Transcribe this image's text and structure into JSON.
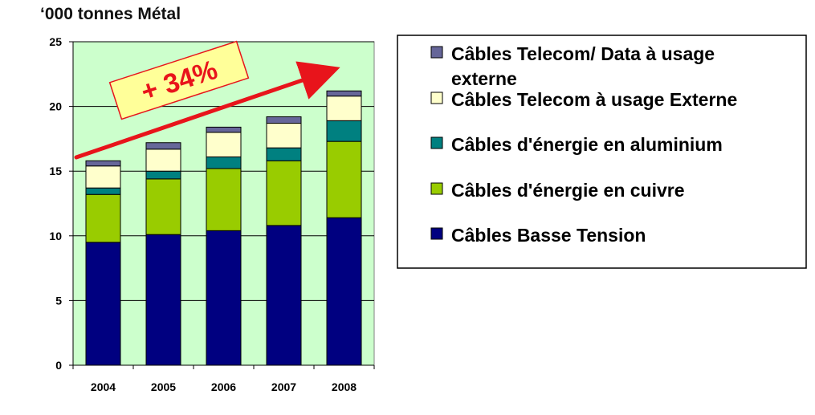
{
  "chart_data": {
    "type": "bar",
    "stacked": true,
    "title": "‘000 tonnes Métal",
    "categories": [
      "2004",
      "2005",
      "2006",
      "2007",
      "2008"
    ],
    "series": [
      {
        "name": "Câbles Basse Tension",
        "color": "#000080",
        "values": [
          9.5,
          10.1,
          10.4,
          10.8,
          11.4
        ]
      },
      {
        "name": "Câbles d'énergie en cuivre",
        "color": "#99cc00",
        "values": [
          3.7,
          4.3,
          4.8,
          5.0,
          5.9
        ]
      },
      {
        "name": "Câbles d'énergie en aluminium",
        "color": "#008080",
        "values": [
          0.5,
          0.6,
          0.9,
          1.0,
          1.6
        ]
      },
      {
        "name": "Câbles Telecom à usage Externe",
        "color": "#ffffcc",
        "values": [
          1.7,
          1.7,
          1.9,
          1.9,
          1.9
        ]
      },
      {
        "name": "Câbles Telecom/ Data à usage externe",
        "color": "#666699",
        "values": [
          0.4,
          0.5,
          0.4,
          0.5,
          0.4
        ]
      }
    ],
    "legend_order": [
      4,
      3,
      2,
      1,
      0
    ],
    "legend_labels": [
      [
        "Câbles Telecom/ Data à usage",
        "externe"
      ],
      [
        "Câbles Telecom à usage Externe"
      ],
      [
        "Câbles d'énergie en aluminium"
      ],
      [
        "Câbles d'énergie en cuivre"
      ],
      [
        "Câbles Basse Tension"
      ]
    ],
    "ylim": [
      0,
      25
    ],
    "yticks": [
      0,
      5,
      10,
      15,
      20,
      25
    ],
    "grid": true,
    "plot_background": "#ccffcc",
    "legend_position": "right",
    "annotation": {
      "text": "+ 34%",
      "color": "#e8141b",
      "fill": "#ffff99"
    }
  }
}
